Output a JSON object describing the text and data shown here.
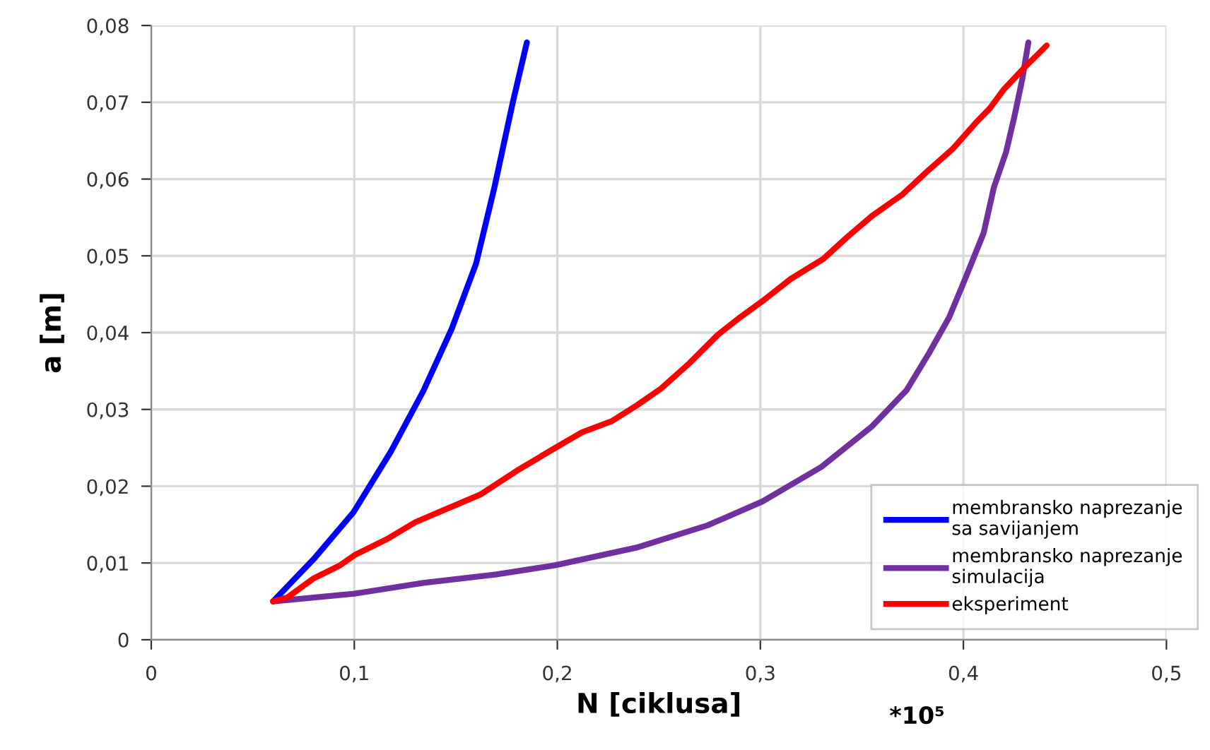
{
  "chart_data": {
    "type": "line",
    "xlabel": "N [ciklusa]",
    "ylabel": "a [m]",
    "annotations": [
      "*10⁵"
    ],
    "series": [
      {
        "name": "membransko naprezanje\nsa savijanjem",
        "color": "#0000ff",
        "x": [
          0.06,
          0.08,
          0.0996,
          0.118,
          0.134,
          0.148,
          0.16,
          0.169,
          0.178,
          0.185
        ],
        "values": [
          0.005,
          0.0105,
          0.0166,
          0.0245,
          0.0324,
          0.0405,
          0.049,
          0.0589,
          0.0699,
          0.0778
        ]
      },
      {
        "name": "membransko naprezanje\nsimulacija",
        "color": "#7030a0",
        "x": [
          0.06,
          0.1,
          0.134,
          0.17,
          0.199,
          0.239,
          0.274,
          0.301,
          0.33,
          0.355,
          0.372,
          0.383,
          0.393,
          0.401,
          0.41,
          0.415,
          0.421,
          0.425,
          0.429,
          0.432
        ],
        "values": [
          0.005,
          0.006,
          0.0074,
          0.0085,
          0.0097,
          0.012,
          0.0149,
          0.018,
          0.0225,
          0.0278,
          0.0325,
          0.0373,
          0.042,
          0.0471,
          0.053,
          0.0589,
          0.0635,
          0.068,
          0.073,
          0.0778
        ]
      },
      {
        "name": "eksperiment",
        "color": "#ff0000",
        "x": [
          0.06,
          0.067,
          0.08,
          0.093,
          0.1,
          0.116,
          0.13,
          0.145,
          0.162,
          0.18,
          0.199,
          0.212,
          0.227,
          0.239,
          0.251,
          0.265,
          0.279,
          0.29,
          0.301,
          0.315,
          0.331,
          0.343,
          0.355,
          0.37,
          0.383,
          0.395,
          0.406,
          0.413,
          0.42,
          0.43,
          0.441
        ],
        "values": [
          0.005,
          0.0055,
          0.008,
          0.0097,
          0.011,
          0.0131,
          0.0153,
          0.017,
          0.0189,
          0.022,
          0.025,
          0.027,
          0.0285,
          0.0305,
          0.0327,
          0.036,
          0.0397,
          0.042,
          0.0441,
          0.047,
          0.0496,
          0.0525,
          0.0552,
          0.058,
          0.0612,
          0.064,
          0.0673,
          0.0692,
          0.0717,
          0.0745,
          0.0774
        ]
      }
    ],
    "xlim": [
      0,
      0.5
    ],
    "ylim": [
      0,
      0.08
    ],
    "xticks": [
      0,
      {
        "value": 0.1,
        "label": "0,1"
      },
      {
        "value": 0.2,
        "label": "0,2"
      },
      {
        "value": 0.3,
        "label": "0,3"
      },
      {
        "value": 0.4,
        "label": "0,4"
      },
      {
        "value": 0.5,
        "label": "0,5"
      }
    ],
    "yticks": [
      0,
      {
        "value": 0.01,
        "label": "0,01"
      },
      {
        "value": 0.02,
        "label": "0,02"
      },
      {
        "value": 0.03,
        "label": "0,03"
      },
      {
        "value": 0.04,
        "label": "0,04"
      },
      {
        "value": 0.05,
        "label": "0,05"
      },
      {
        "value": 0.06,
        "label": "0,06"
      },
      {
        "value": 0.07,
        "label": "0,07"
      },
      {
        "value": 0.08,
        "label": "0,08"
      }
    ],
    "grid": true,
    "legend": "bottom right",
    "marker": "none",
    "line_style": "solid"
  }
}
